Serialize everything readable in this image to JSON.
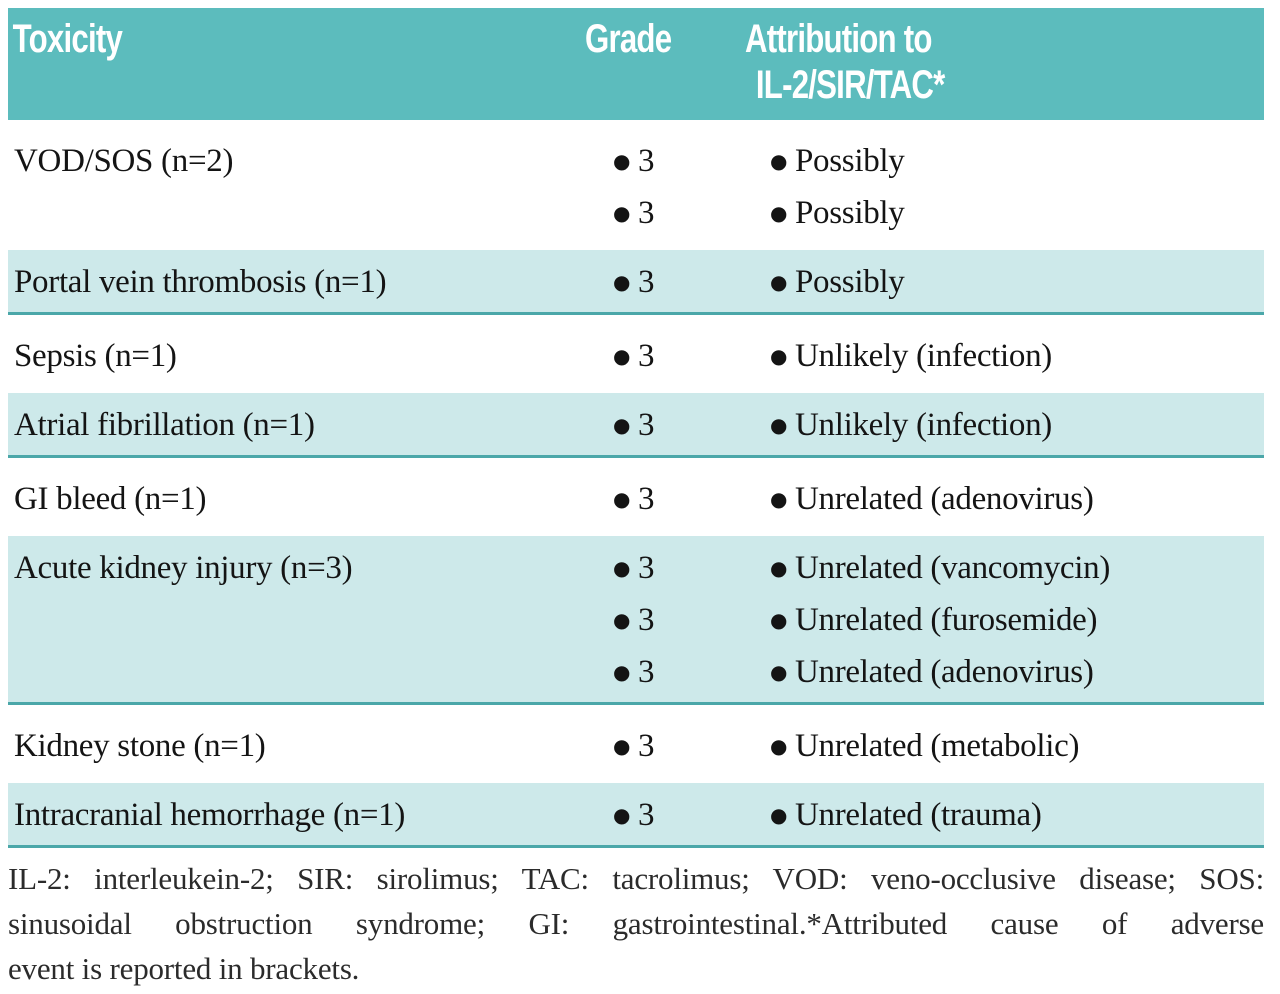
{
  "table": {
    "header": {
      "toxicity": "Toxicity",
      "grade": "Grade",
      "attribution_line1": "Attribution to",
      "attribution_line2": "IL-2/SIR/TAC*"
    },
    "rows": [
      {
        "toxicity": "VOD/SOS (n=2)",
        "shaded": false,
        "entries": [
          {
            "grade": "3",
            "attribution": "Possibly"
          },
          {
            "grade": "3",
            "attribution": "Possibly"
          }
        ]
      },
      {
        "toxicity": "Portal vein thrombosis (n=1)",
        "shaded": true,
        "entries": [
          {
            "grade": "3",
            "attribution": "Possibly"
          }
        ]
      },
      {
        "toxicity": "Sepsis (n=1)",
        "shaded": false,
        "entries": [
          {
            "grade": "3",
            "attribution": "Unlikely (infection)"
          }
        ]
      },
      {
        "toxicity": "Atrial fibrillation (n=1)",
        "shaded": true,
        "entries": [
          {
            "grade": "3",
            "attribution": "Unlikely (infection)"
          }
        ]
      },
      {
        "toxicity": "GI bleed (n=1)",
        "shaded": false,
        "entries": [
          {
            "grade": "3",
            "attribution": "Unrelated (adenovirus)"
          }
        ]
      },
      {
        "toxicity": "Acute kidney injury (n=3)",
        "shaded": true,
        "entries": [
          {
            "grade": "3",
            "attribution": "Unrelated (vancomycin)"
          },
          {
            "grade": "3",
            "attribution": "Unrelated (furosemide)"
          },
          {
            "grade": "3",
            "attribution": "Unrelated (adenovirus)"
          }
        ]
      },
      {
        "toxicity": "Kidney stone (n=1)",
        "shaded": false,
        "entries": [
          {
            "grade": "3",
            "attribution": "Unrelated (metabolic)"
          }
        ]
      },
      {
        "toxicity": "Intracranial hemorrhage (n=1)",
        "shaded": true,
        "entries": [
          {
            "grade": "3",
            "attribution": "Unrelated (trauma)"
          }
        ]
      }
    ]
  },
  "footnote": {
    "line1": "IL-2: interleukein-2; SIR: sirolimus; TAC: tacrolimus; VOD: veno-occlusive disease; SOS:",
    "line2": "sinusoidal obstruction syndrome; GI: gastrointestinal.*Attributed cause of adverse",
    "line3": "event is reported in brackets."
  },
  "icons": {
    "bullet": "●"
  },
  "colors": {
    "header_bg": "#5cbcbd",
    "header_text": "#ffffff",
    "row_shaded_bg": "#cde9ea",
    "divider": "#4ba7a9",
    "body_text": "#141414",
    "footnote_text": "#2b2b2b"
  }
}
